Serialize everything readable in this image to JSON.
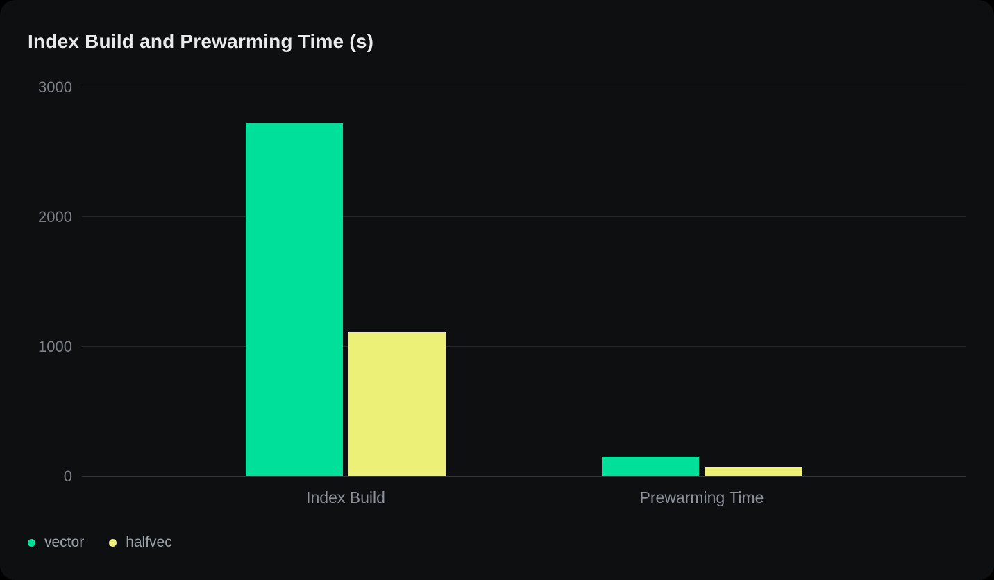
{
  "colors": {
    "page_bg": "#000000",
    "card_bg": "#0e0f10",
    "title": "#e9eaec",
    "ytick": "#7c8188",
    "xcat": "#8b9099",
    "legend_text": "#9ba1a9",
    "grid": "#26282b",
    "grid_zero": "#323639"
  },
  "chart_data": {
    "type": "bar",
    "title": "Index Build and Prewarming Time (s)",
    "categories": [
      "Index Build",
      "Prewarming Time"
    ],
    "series": [
      {
        "name": "vector",
        "color": "#00e09b",
        "values": [
          2715,
          150
        ]
      },
      {
        "name": "halfvec",
        "color": "#edf076",
        "values": [
          1105,
          70
        ]
      }
    ],
    "xlabel": "",
    "ylabel": "",
    "unit": "s",
    "ylim": [
      0,
      3000
    ],
    "yticks": [
      0,
      1000,
      2000,
      3000
    ],
    "grid": true,
    "legend_position": "bottom-left"
  }
}
